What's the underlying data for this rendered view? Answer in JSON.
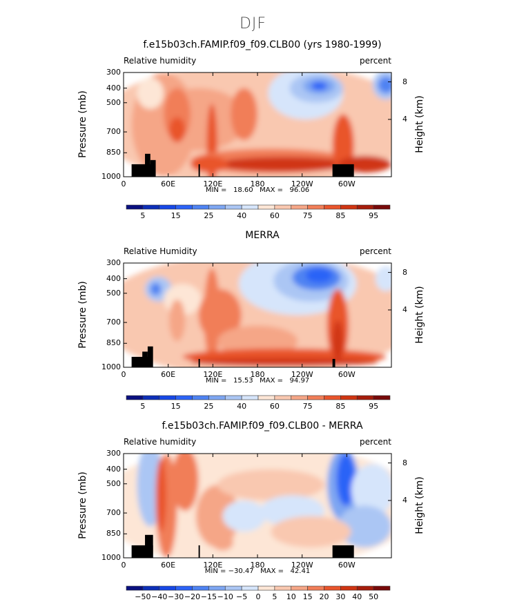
{
  "figure_title": "DJF",
  "chart_data": [
    {
      "type": "heatmap",
      "title": "f.e15b03ch.FAMIP.f09_f09.CLB00 (yrs 1980-1999)",
      "left_label": "Relative humidity",
      "right_label": "percent",
      "ylabel": "Pressure (mb)",
      "ylabel_right": "Height (km)",
      "yticks": [
        "300",
        "400",
        "500",
        "700",
        "850",
        "1000"
      ],
      "yticks_right": [
        "8",
        "4"
      ],
      "xticks": [
        "0",
        "60E",
        "120E",
        "180",
        "120W",
        "60W"
      ],
      "min_max": "MIN =   18.60   MAX =   96.06",
      "colorbar_labels": [
        "5",
        "15",
        "25",
        "40",
        "60",
        "75",
        "85",
        "95"
      ]
    },
    {
      "type": "heatmap",
      "title": "MERRA",
      "left_label": "Relative Humidity",
      "right_label": "percent",
      "ylabel": "Pressure (mb)",
      "ylabel_right": "Height (km)",
      "yticks": [
        "300",
        "400",
        "500",
        "700",
        "850",
        "1000"
      ],
      "yticks_right": [
        "8",
        "4"
      ],
      "xticks": [
        "0",
        "60E",
        "120E",
        "180",
        "120W",
        "60W"
      ],
      "min_max": "MIN =   15.53   MAX =   94.97",
      "colorbar_labels": [
        "5",
        "15",
        "25",
        "40",
        "60",
        "75",
        "85",
        "95"
      ]
    },
    {
      "type": "heatmap",
      "title": "f.e15b03ch.FAMIP.f09_f09.CLB00 - MERRA",
      "left_label": "Relative humidity",
      "right_label": "percent",
      "ylabel": "Pressure (mb)",
      "ylabel_right": "Height (km)",
      "yticks": [
        "300",
        "400",
        "500",
        "700",
        "850",
        "1000"
      ],
      "yticks_right": [
        "8",
        "4"
      ],
      "xticks": [
        "0",
        "60E",
        "120E",
        "180",
        "120W",
        "60W"
      ],
      "min_max": "MIN = −30.47   MAX =   42.41",
      "colorbar_labels": [
        "−50",
        "−40",
        "−30",
        "−20",
        "−15",
        "−10",
        "−5",
        "0",
        "5",
        "10",
        "15",
        "20",
        "30",
        "40",
        "50"
      ]
    }
  ],
  "colors": [
    "#0a1080",
    "#0d2fb8",
    "#1748e6",
    "#2c63f7",
    "#4f83f2",
    "#7ea6f2",
    "#abc6f4",
    "#d6e5fb",
    "#fde6d6",
    "#f9c8b0",
    "#f5a687",
    "#f17e58",
    "#e9552c",
    "#d03512",
    "#a61d0c",
    "#780a0a"
  ]
}
